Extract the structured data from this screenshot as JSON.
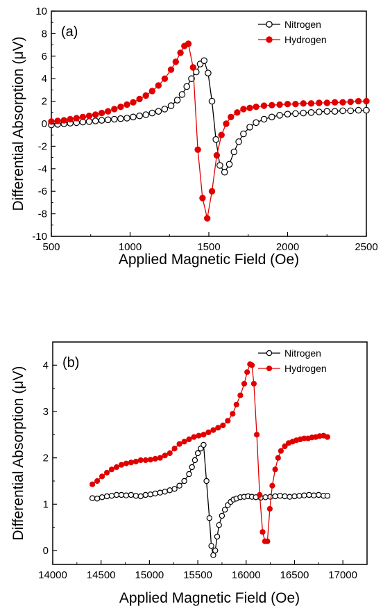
{
  "chart_data": [
    {
      "type": "scatter",
      "panel_label": "(a)",
      "xlabel": "Applied Magnetic Field (Oe)",
      "ylabel": "Differential Absorption (μV)",
      "xlim": [
        500,
        2500
      ],
      "ylim": [
        -10,
        10
      ],
      "xticks": [
        500,
        1000,
        1500,
        2000,
        2500
      ],
      "yticks": [
        -10,
        -8,
        -6,
        -4,
        -2,
        0,
        2,
        4,
        6,
        8,
        10
      ],
      "grid": false,
      "legend_position": "top-right",
      "series": [
        {
          "name": "Nitrogen",
          "marker": "open-circle",
          "color": "#000000",
          "x": [
            500,
            540,
            580,
            620,
            660,
            700,
            740,
            780,
            820,
            860,
            900,
            940,
            980,
            1020,
            1060,
            1100,
            1140,
            1180,
            1220,
            1260,
            1300,
            1330,
            1360,
            1390,
            1420,
            1445,
            1470,
            1495,
            1520,
            1545,
            1570,
            1600,
            1630,
            1660,
            1690,
            1720,
            1760,
            1800,
            1850,
            1900,
            1950,
            2000,
            2050,
            2100,
            2150,
            2200,
            2250,
            2300,
            2350,
            2400,
            2450,
            2500
          ],
          "y": [
            -0.1,
            -0.05,
            0.0,
            0.05,
            0.1,
            0.15,
            0.2,
            0.25,
            0.3,
            0.35,
            0.4,
            0.45,
            0.5,
            0.6,
            0.7,
            0.8,
            0.95,
            1.1,
            1.3,
            1.6,
            2.1,
            2.6,
            3.3,
            4.0,
            4.6,
            5.3,
            5.6,
            4.5,
            2.0,
            -1.4,
            -3.7,
            -4.3,
            -3.6,
            -2.5,
            -1.6,
            -0.9,
            -0.3,
            0.1,
            0.4,
            0.6,
            0.75,
            0.85,
            0.9,
            0.95,
            1.0,
            1.05,
            1.1,
            1.1,
            1.15,
            1.15,
            1.2,
            1.2
          ]
        },
        {
          "name": "Hydrogen",
          "marker": "filled-circle",
          "color": "#e00000",
          "x": [
            500,
            540,
            580,
            620,
            660,
            700,
            740,
            780,
            820,
            860,
            900,
            940,
            980,
            1020,
            1060,
            1100,
            1140,
            1180,
            1220,
            1260,
            1290,
            1320,
            1345,
            1370,
            1400,
            1430,
            1460,
            1490,
            1520,
            1550,
            1580,
            1610,
            1640,
            1680,
            1720,
            1760,
            1800,
            1850,
            1900,
            1950,
            2000,
            2050,
            2100,
            2150,
            2200,
            2250,
            2300,
            2350,
            2400,
            2450,
            2500
          ],
          "y": [
            0.2,
            0.25,
            0.3,
            0.4,
            0.5,
            0.6,
            0.7,
            0.8,
            0.95,
            1.1,
            1.3,
            1.5,
            1.7,
            1.9,
            2.2,
            2.5,
            2.9,
            3.4,
            4.0,
            4.8,
            5.5,
            6.3,
            6.9,
            7.1,
            5.0,
            -2.3,
            -6.6,
            -8.4,
            -6.0,
            -2.8,
            -1.0,
            0.0,
            0.6,
            1.0,
            1.3,
            1.4,
            1.5,
            1.6,
            1.65,
            1.7,
            1.75,
            1.75,
            1.8,
            1.8,
            1.85,
            1.85,
            1.9,
            1.9,
            1.95,
            2.0,
            2.0
          ]
        }
      ]
    },
    {
      "type": "scatter",
      "panel_label": "(b)",
      "xlabel": "Applied Magnetic Field (Oe)",
      "ylabel": "Differential Absorption (μV)",
      "xlim": [
        14000,
        17250
      ],
      "ylim": [
        -0.3,
        4.5
      ],
      "xticks": [
        14000,
        14500,
        15000,
        15500,
        16000,
        16500,
        17000
      ],
      "yticks": [
        0,
        1,
        2,
        3,
        4
      ],
      "grid": false,
      "legend_position": "top-right",
      "series": [
        {
          "name": "Nitrogen",
          "marker": "open-circle",
          "color": "#000000",
          "x": [
            14410,
            14460,
            14510,
            14560,
            14610,
            14660,
            14710,
            14760,
            14810,
            14860,
            14910,
            14960,
            15010,
            15060,
            15110,
            15160,
            15210,
            15260,
            15310,
            15360,
            15410,
            15440,
            15470,
            15500,
            15530,
            15560,
            15590,
            15620,
            15640,
            15660,
            15680,
            15700,
            15720,
            15750,
            15780,
            15810,
            15840,
            15870,
            15900,
            15940,
            15980,
            16020,
            16060,
            16100,
            16150,
            16200,
            16250,
            16300,
            16350,
            16400,
            16450,
            16500,
            16550,
            16600,
            16650,
            16700,
            16750,
            16800,
            16840
          ],
          "y": [
            1.13,
            1.12,
            1.15,
            1.17,
            1.18,
            1.2,
            1.2,
            1.19,
            1.2,
            1.18,
            1.17,
            1.2,
            1.21,
            1.23,
            1.25,
            1.27,
            1.3,
            1.33,
            1.4,
            1.5,
            1.65,
            1.8,
            1.95,
            2.1,
            2.2,
            2.28,
            1.5,
            0.7,
            0.1,
            -0.1,
            0.0,
            0.3,
            0.55,
            0.75,
            0.88,
            0.98,
            1.05,
            1.1,
            1.12,
            1.15,
            1.16,
            1.17,
            1.16,
            1.15,
            1.14,
            1.15,
            1.16,
            1.17,
            1.18,
            1.17,
            1.16,
            1.17,
            1.18,
            1.19,
            1.2,
            1.19,
            1.2,
            1.18,
            1.18
          ]
        },
        {
          "name": "Hydrogen",
          "marker": "filled-circle",
          "color": "#e00000",
          "x": [
            14410,
            14460,
            14510,
            14560,
            14610,
            14660,
            14710,
            14760,
            14810,
            14860,
            14910,
            14960,
            15010,
            15060,
            15110,
            15160,
            15210,
            15260,
            15310,
            15360,
            15410,
            15460,
            15510,
            15560,
            15610,
            15660,
            15710,
            15760,
            15810,
            15860,
            15900,
            15940,
            15980,
            16010,
            16040,
            16060,
            16080,
            16110,
            16140,
            16170,
            16195,
            16220,
            16245,
            16270,
            16300,
            16330,
            16360,
            16400,
            16440,
            16480,
            16520,
            16560,
            16600,
            16640,
            16680,
            16720,
            16760,
            16800,
            16840
          ],
          "y": [
            1.43,
            1.5,
            1.6,
            1.68,
            1.75,
            1.8,
            1.85,
            1.88,
            1.9,
            1.92,
            1.95,
            1.95,
            1.96,
            1.98,
            2.0,
            2.05,
            2.1,
            2.2,
            2.3,
            2.35,
            2.4,
            2.45,
            2.48,
            2.5,
            2.55,
            2.6,
            2.65,
            2.7,
            2.8,
            2.95,
            3.15,
            3.35,
            3.6,
            3.85,
            4.02,
            4.0,
            3.6,
            2.5,
            1.2,
            0.4,
            0.2,
            0.2,
            0.9,
            1.4,
            1.75,
            2.0,
            2.15,
            2.25,
            2.32,
            2.35,
            2.38,
            2.4,
            2.42,
            2.42,
            2.44,
            2.45,
            2.47,
            2.48,
            2.45
          ]
        }
      ]
    }
  ]
}
